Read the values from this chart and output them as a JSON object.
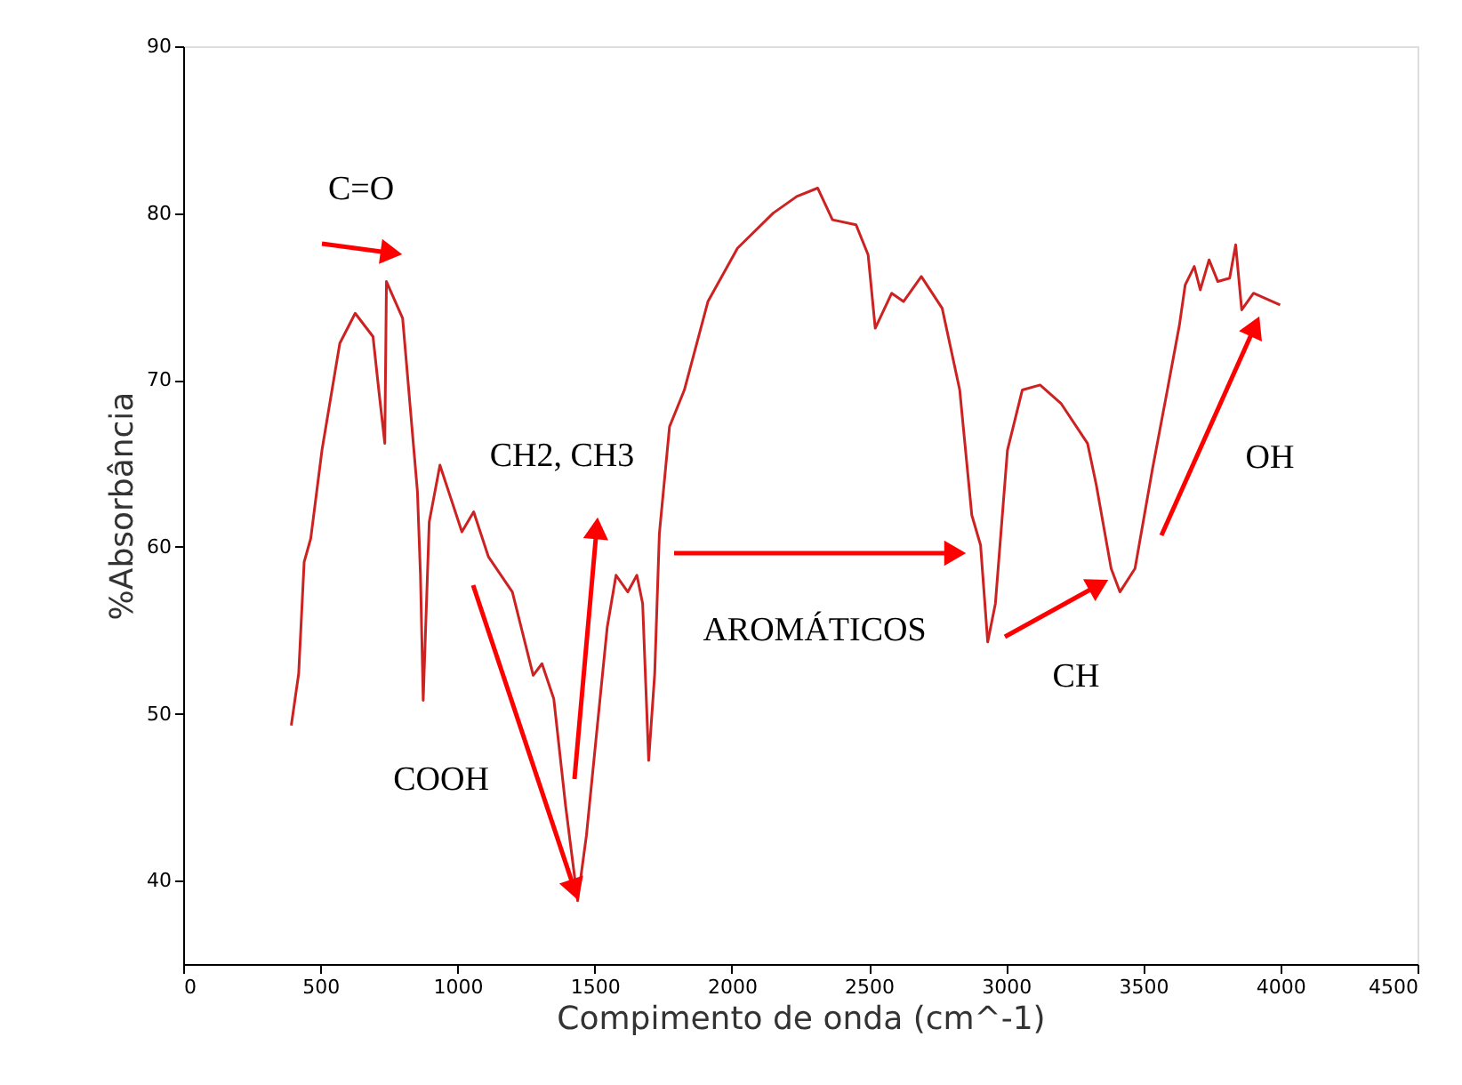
{
  "chart_data": {
    "type": "line",
    "xlabel": "Compimento de onda (cm^-1)",
    "ylabel": "%Absorbância",
    "x": [
      394,
      421,
      441,
      465,
      506,
      571,
      627,
      692,
      713,
      735,
      741,
      800,
      854,
      865,
      875,
      897,
      936,
      1016,
      1059,
      1113,
      1200,
      1276,
      1308,
      1351,
      1394,
      1438,
      1470,
      1513,
      1546,
      1578,
      1621,
      1654,
      1675,
      1697,
      1719,
      1736,
      1773,
      1827,
      1913,
      2021,
      2151,
      2237,
      2313,
      2367,
      2453,
      2497,
      2523,
      2583,
      2626,
      2691,
      2767,
      2831,
      2875,
      2907,
      2933,
      2961,
      3005,
      3059,
      3124,
      3200,
      3297,
      3329,
      3383,
      3415,
      3470,
      3534,
      3588,
      3632,
      3653,
      3686,
      3708,
      3740,
      3772,
      3815,
      3837,
      3859,
      3902,
      3999
    ],
    "series": [
      {
        "color": "#cc2222",
        "values": [
          49.3,
          52.4,
          59.1,
          60.5,
          65.8,
          72.2,
          74.0,
          72.6,
          69.4,
          66.2,
          75.9,
          73.7,
          63.3,
          58.3,
          50.8,
          61.5,
          64.9,
          60.9,
          62.1,
          59.4,
          57.3,
          52.3,
          53.0,
          50.9,
          44.5,
          38.8,
          42.7,
          49.8,
          55.2,
          58.3,
          57.3,
          58.3,
          56.6,
          47.2,
          52.4,
          60.8,
          67.2,
          69.4,
          74.7,
          77.9,
          80.0,
          81.0,
          81.5,
          79.6,
          79.3,
          77.5,
          73.1,
          75.2,
          74.7,
          76.2,
          74.3,
          69.4,
          61.9,
          60.1,
          54.3,
          56.6,
          65.8,
          69.4,
          69.7,
          68.6,
          66.2,
          63.7,
          58.7,
          57.3,
          58.7,
          64.7,
          69.4,
          73.3,
          75.7,
          76.8,
          75.4,
          77.2,
          75.9,
          76.1,
          78.1,
          74.2,
          75.2,
          74.5
        ]
      }
    ],
    "xlim": [
      0,
      4500
    ],
    "xticks": [
      0,
      500,
      1000,
      1500,
      2000,
      2500,
      3000,
      3500,
      4000,
      4500
    ],
    "ylim": [
      35,
      90
    ],
    "yticks": [
      40,
      50,
      60,
      70,
      80,
      90
    ],
    "grid": false,
    "marker": "none",
    "line_style": "solid",
    "annotations": [
      "C=O",
      "COOH",
      "CH2, CH3",
      "AROMÁTICOS",
      "CH",
      "OH"
    ]
  }
}
